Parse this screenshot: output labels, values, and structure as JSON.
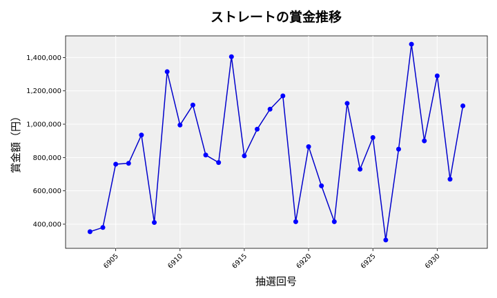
{
  "chart_data": {
    "type": "line",
    "title": "ストレートの賞金推移",
    "xlabel": "抽選回号",
    "ylabel": "賞金額（円）",
    "x": [
      6903,
      6904,
      6905,
      6906,
      6907,
      6908,
      6909,
      6910,
      6911,
      6912,
      6913,
      6914,
      6915,
      6916,
      6917,
      6918,
      6919,
      6920,
      6921,
      6922,
      6923,
      6924,
      6925,
      6926,
      6927,
      6928,
      6929,
      6930,
      6931,
      6932
    ],
    "series": [
      {
        "values": [
          355000,
          380000,
          760000,
          765000,
          935000,
          410000,
          1315000,
          995000,
          1115000,
          815000,
          770000,
          1405000,
          810000,
          970000,
          1090000,
          1170000,
          415000,
          865000,
          630000,
          415000,
          1125000,
          730000,
          920000,
          305000,
          850000,
          1480000,
          900000,
          1290000,
          670000,
          1110000
        ]
      }
    ],
    "xlim": [
      6901.1,
      6933.9
    ],
    "ylim": [
      255000,
      1530000
    ],
    "xticks": [
      6905,
      6910,
      6915,
      6920,
      6925,
      6930
    ],
    "yticks": [
      400000,
      600000,
      800000,
      1000000,
      1200000,
      1400000
    ],
    "ytick_labels": [
      "400,000",
      "600,000",
      "800,000",
      "1,000,000",
      "1,200,000",
      "1,400,000"
    ],
    "grid": true,
    "line_color": "#0000cc",
    "marker_color": "#0000ff",
    "plot_bg": "#efefef"
  }
}
